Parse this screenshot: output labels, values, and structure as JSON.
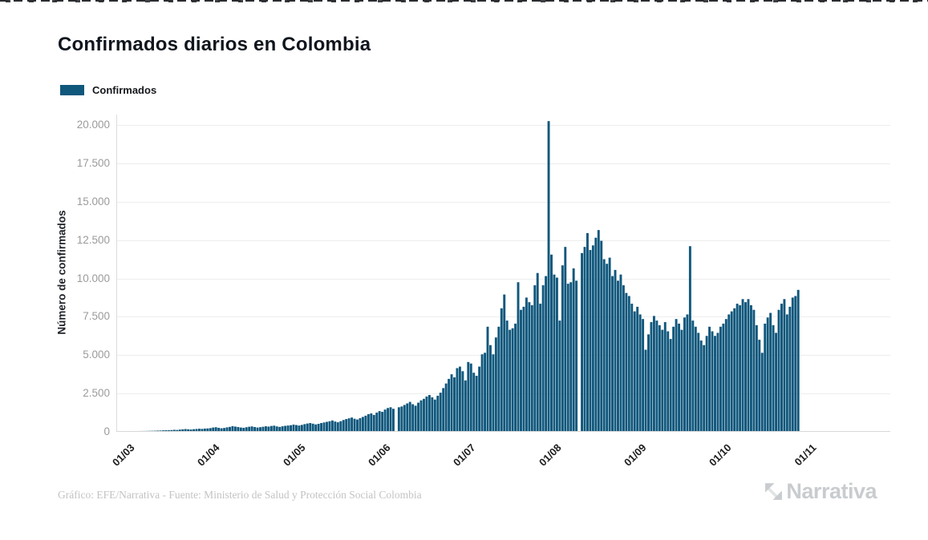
{
  "title": "Confirmados diarios en Colombia",
  "legend": {
    "label": "Confirmados",
    "swatch_color": "#10577C"
  },
  "y_axis": {
    "label": "Número de confirmados",
    "ticks": [
      {
        "label": "0",
        "value": 0
      },
      {
        "label": "2.500",
        "value": 2500
      },
      {
        "label": "5.000",
        "value": 5000
      },
      {
        "label": "7.500",
        "value": 7500
      },
      {
        "label": "10.000",
        "value": 10000
      },
      {
        "label": "12.500",
        "value": 12500
      },
      {
        "label": "15.000",
        "value": 15000
      },
      {
        "label": "17.500",
        "value": 17500
      },
      {
        "label": "20.000",
        "value": 20000
      }
    ]
  },
  "x_axis": {
    "ticks": [
      "01/03",
      "01/04",
      "01/05",
      "01/06",
      "01/07",
      "01/08",
      "01/09",
      "01/10",
      "01/11"
    ]
  },
  "footer": {
    "credit": "Gráfico: EFE/Narrativa - Fuente: Ministerio de Salud y Protección Social Colombia",
    "brand": "Narrativa"
  },
  "chart_data": {
    "type": "bar",
    "title": "Confirmados diarios en Colombia",
    "xlabel": "",
    "ylabel": "Número de confirmados",
    "series_name": "Confirmados",
    "ylim": [
      0,
      20000
    ],
    "grid": true,
    "legend_position": "top-left",
    "bar_color": "#10577C",
    "x_start_date": "2020-03-01",
    "x_end_date": "2020-10-31",
    "x_tick_labels": [
      "01/03",
      "01/04",
      "01/05",
      "01/06",
      "01/07",
      "01/08",
      "01/09",
      "01/10",
      "01/11"
    ],
    "values": [
      0,
      0,
      0,
      0,
      0,
      1,
      1,
      3,
      5,
      9,
      13,
      16,
      22,
      30,
      34,
      45,
      57,
      50,
      65,
      80,
      70,
      95,
      110,
      130,
      115,
      100,
      120,
      135,
      150,
      140,
      160,
      170,
      190,
      230,
      250,
      210,
      180,
      200,
      240,
      270,
      320,
      290,
      260,
      230,
      210,
      250,
      280,
      300,
      260,
      230,
      250,
      280,
      310,
      290,
      330,
      350,
      300,
      270,
      310,
      340,
      360,
      380,
      420,
      390,
      360,
      400,
      450,
      490,
      520,
      480,
      430,
      470,
      520,
      560,
      600,
      640,
      690,
      620,
      570,
      640,
      720,
      780,
      830,
      880,
      800,
      750,
      840,
      920,
      1000,
      1100,
      1150,
      1050,
      1200,
      1300,
      1250,
      1400,
      1500,
      1550,
      1450,
      0,
      1550,
      1600,
      1700,
      1800,
      1900,
      1750,
      1650,
      1850,
      2000,
      2100,
      2250,
      2350,
      2200,
      2050,
      2300,
      2500,
      2800,
      3100,
      3400,
      3700,
      3500,
      4100,
      4200,
      3900,
      3300,
      4500,
      4400,
      3800,
      3600,
      4200,
      5000,
      5100,
      6800,
      5600,
      5000,
      6100,
      6800,
      8000,
      8900,
      7200,
      6600,
      6700,
      7000,
      9700,
      7900,
      8100,
      8700,
      8400,
      8200,
      9500,
      10300,
      8300,
      9500,
      10100,
      20200,
      11500,
      10200,
      10000,
      7200,
      10800,
      12000,
      9600,
      9700,
      10600,
      9800,
      0,
      11600,
      12000,
      12900,
      11800,
      12100,
      12600,
      13100,
      12400,
      11200,
      10900,
      11300,
      10100,
      10500,
      9800,
      10200,
      9500,
      9000,
      8800,
      8300,
      7800,
      8100,
      7600,
      7300,
      5300,
      6300,
      7100,
      7500,
      7200,
      6900,
      6600,
      7100,
      6500,
      6000,
      6800,
      7300,
      7000,
      6600,
      7400,
      7600,
      12050,
      7200,
      6800,
      6400,
      5900,
      5600,
      6200,
      6800,
      6500,
      6200,
      6400,
      6800,
      7000,
      7300,
      7600,
      7800,
      8000,
      8300,
      8200,
      8600,
      8400,
      8600,
      8200,
      7900,
      6900,
      5950,
      5100,
      7000,
      7400,
      7700,
      6900,
      6400,
      7900,
      8300,
      8600,
      7600,
      8100,
      8700,
      8800,
      9200
    ]
  }
}
